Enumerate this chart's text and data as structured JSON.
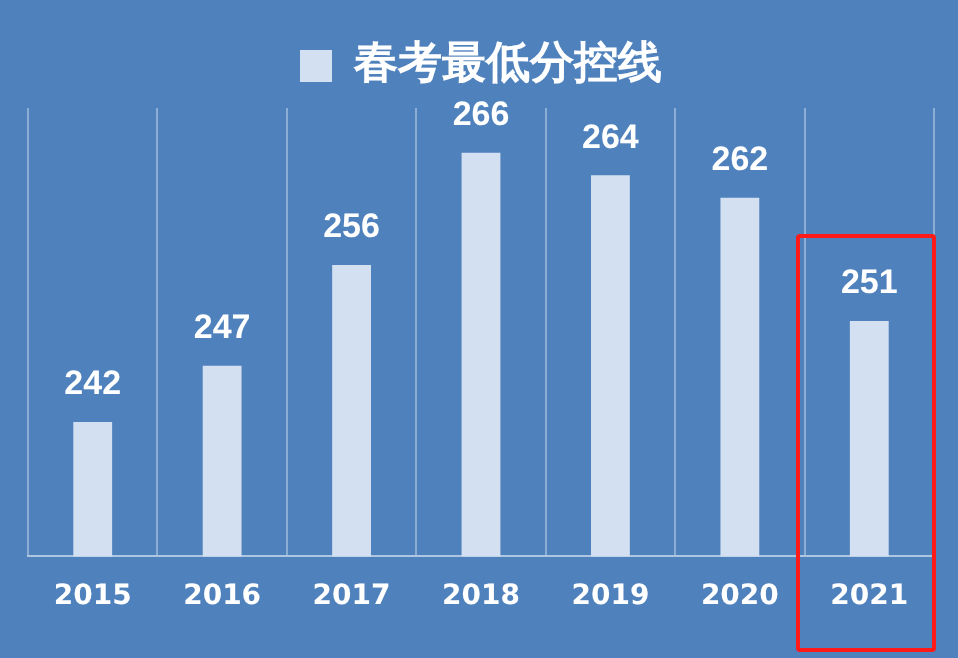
{
  "chart_data": {
    "type": "bar",
    "categories": [
      "2015",
      "2016",
      "2017",
      "2018",
      "2019",
      "2020",
      "2021"
    ],
    "series": [
      {
        "name": "春考最低分控线",
        "color": "#d3e0f1",
        "values": [
          242,
          247,
          256,
          266,
          264,
          262,
          251
        ]
      }
    ],
    "ylim": [
      230,
      270
    ],
    "tick_labels": "x",
    "grid": "x",
    "legend": "top",
    "data_labels": true
  }
}
